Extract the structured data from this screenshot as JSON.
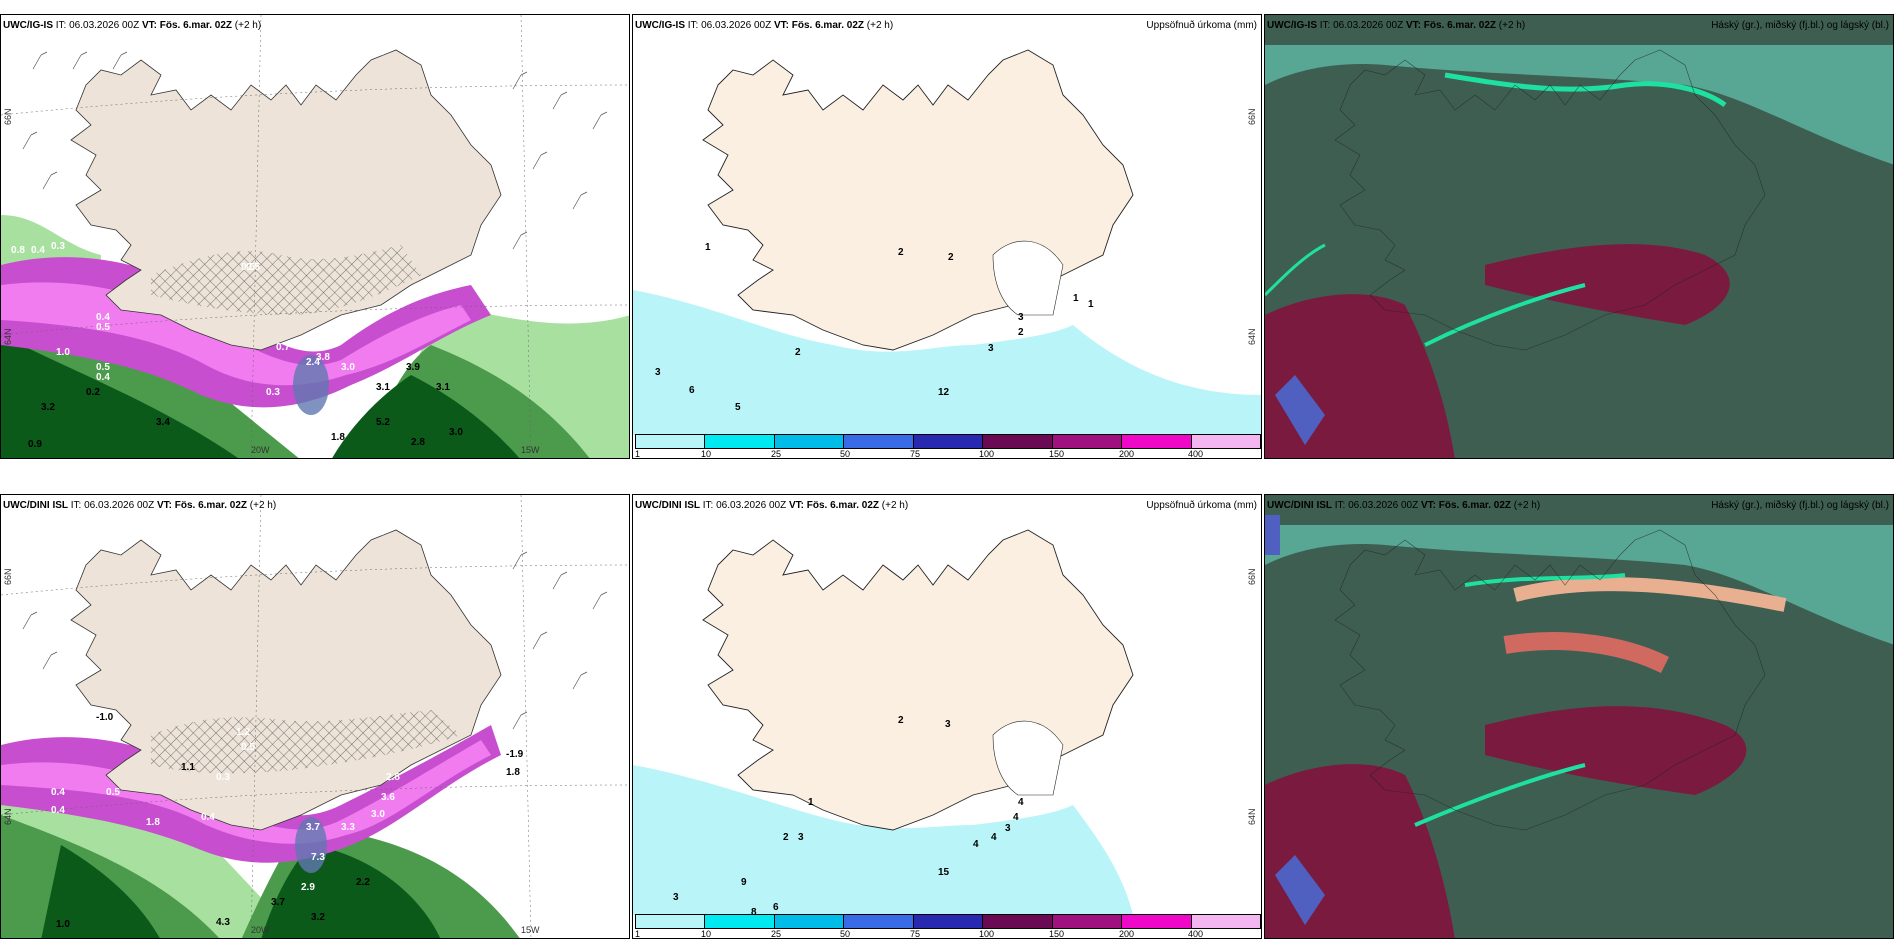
{
  "rows": [
    {
      "model": "UWC/IG-IS",
      "panels": [
        {
          "it_label": "IT: 06.03.2026 00Z",
          "vt_label": "VT: Fös. 6.mar. 02Z",
          "lead": "(+2 h)"
        },
        {
          "it_label": "IT: 06.03.2026 00Z",
          "vt_label": "VT: Fös. 6.mar. 02Z",
          "lead": "(+2 h)",
          "title": "Uppsöfnuð úrkoma (mm)"
        },
        {
          "it_label": "IT: 06.03.2026 00Z",
          "vt_label": "VT: Fös. 6.mar. 02Z",
          "lead": "(+2 h)",
          "title": "Háský (gr.), miðský (fj.bl.) og lágský (bl.)"
        }
      ],
      "precip_labels": [
        "1",
        "2",
        "2",
        "2",
        "3",
        "3",
        "6",
        "5",
        "2",
        "1",
        "12",
        "1",
        "3"
      ],
      "temp_labels": [
        "0.8",
        "0.4",
        "0.3",
        "0.4",
        "0.5",
        "0.5",
        "1.0",
        "0.5",
        "0.4",
        "0.7",
        "0.5",
        "0.3",
        "2.4",
        "3.0",
        "3.8",
        "3.9",
        "3.1",
        "3.1",
        "5.2",
        "2.8",
        "3.0",
        "1.8",
        "0.9",
        "0.2",
        "3.2",
        "3.4"
      ]
    },
    {
      "model": "UWC/DINI ISL",
      "panels": [
        {
          "it_label": "IT: 06.03.2026 00Z",
          "vt_label": "VT: Fös. 6.mar. 02Z",
          "lead": "(+2 h)"
        },
        {
          "it_label": "IT: 06.03.2026 00Z",
          "vt_label": "VT: Fös. 6.mar. 02Z",
          "lead": "(+2 h)",
          "title": "Uppsöfnuð úrkoma (mm)"
        },
        {
          "it_label": "IT: 06.03.2026 00Z",
          "vt_label": "VT: Fös. 6.mar. 02Z",
          "lead": "(+2 h)",
          "title": "Háský (gr.), miðský (fj.bl.) og lágský (bl.)"
        }
      ],
      "precip_labels": [
        "2",
        "3",
        "1",
        "2",
        "3",
        "4",
        "4",
        "4",
        "3",
        "4",
        "9",
        "6",
        "3",
        "8",
        "15"
      ],
      "temp_labels": [
        "-1.0",
        "1.2",
        "0.5",
        "0.3",
        "0.4",
        "0.4",
        "0.5",
        "1.1",
        "1.8",
        "0.4",
        "3.7",
        "3.3",
        "7.3",
        "2.9",
        "3.7",
        "3.2",
        "4.3",
        "2.2",
        "1.0",
        "2.8",
        "3.6",
        "3.0",
        "-1.9",
        "1.8"
      ]
    }
  ],
  "colorbar": {
    "ticks": [
      "1",
      "10",
      "25",
      "50",
      "75",
      "100",
      "150",
      "200",
      "400"
    ],
    "colors": [
      "#b8f4f8",
      "#00e8f0",
      "#00bce8",
      "#3a6be6",
      "#2828b0",
      "#6a0a52",
      "#a0107e",
      "#f008c8",
      "#f4b6f0"
    ]
  },
  "axes": {
    "lat_label": "66N",
    "lat_label2": "64N",
    "lon_label": "20W",
    "lon_label2": "15W"
  },
  "colors": {
    "land": "#f7ece0",
    "land_gray": "#ede3d8",
    "sea_precip": "#b8f4f8",
    "cloud_dark": "#3e5e52",
    "cloud_teal": "#58a694",
    "cloud_green": "#1ee0a0",
    "cloud_red": "#7a1a3e",
    "snow_purple": "#c84ed0",
    "snow_pink": "#f07cf0",
    "rain_green": "#0b5a1a",
    "rain_light": "#a8e0a0"
  }
}
